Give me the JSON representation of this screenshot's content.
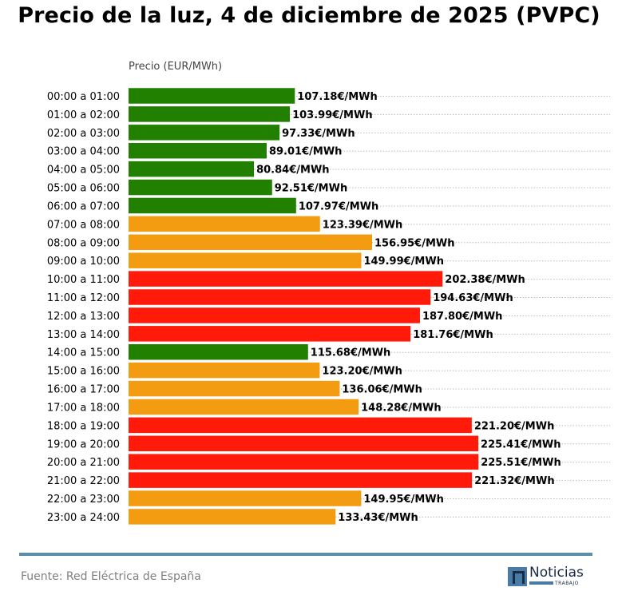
{
  "page": {
    "title": "Precio de la luz, 4 de diciembre de 2025 (PVPC)",
    "source": "Fuente: Red Eléctrica de España",
    "logo_text": "Noticias",
    "logo_sub": "TRABAJO"
  },
  "colors": {
    "low": "#228000",
    "mid": "#f39c12",
    "high": "#ff1a0a",
    "rule": "#5b8fa8",
    "grid": "#bbbbbb"
  },
  "chart_data": {
    "type": "bar",
    "orientation": "horizontal",
    "ylabel": "Precio (EUR/MWh)",
    "label_suffix": "€/MWh",
    "xlim": [
      0,
      232
    ],
    "categories": [
      "00:00 a 01:00",
      "01:00 a 02:00",
      "02:00 a 03:00",
      "03:00 a 04:00",
      "04:00 a 05:00",
      "05:00 a 06:00",
      "06:00 a 07:00",
      "07:00 a 08:00",
      "08:00 a 09:00",
      "09:00 a 10:00",
      "10:00 a 11:00",
      "11:00 a 12:00",
      "12:00 a 13:00",
      "13:00 a 14:00",
      "14:00 a 15:00",
      "15:00 a 16:00",
      "16:00 a 17:00",
      "17:00 a 18:00",
      "18:00 a 19:00",
      "19:00 a 20:00",
      "20:00 a 21:00",
      "21:00 a 22:00",
      "22:00 a 23:00",
      "23:00 a 24:00"
    ],
    "values": [
      107.18,
      103.99,
      97.33,
      89.01,
      80.84,
      92.51,
      107.97,
      123.39,
      156.95,
      149.99,
      202.38,
      194.63,
      187.8,
      181.76,
      115.68,
      123.2,
      136.06,
      148.28,
      221.2,
      225.41,
      225.51,
      221.32,
      149.95,
      133.43
    ],
    "levels": [
      "low",
      "low",
      "low",
      "low",
      "low",
      "low",
      "low",
      "mid",
      "mid",
      "mid",
      "high",
      "high",
      "high",
      "high",
      "low",
      "mid",
      "mid",
      "mid",
      "high",
      "high",
      "high",
      "high",
      "mid",
      "mid"
    ]
  }
}
